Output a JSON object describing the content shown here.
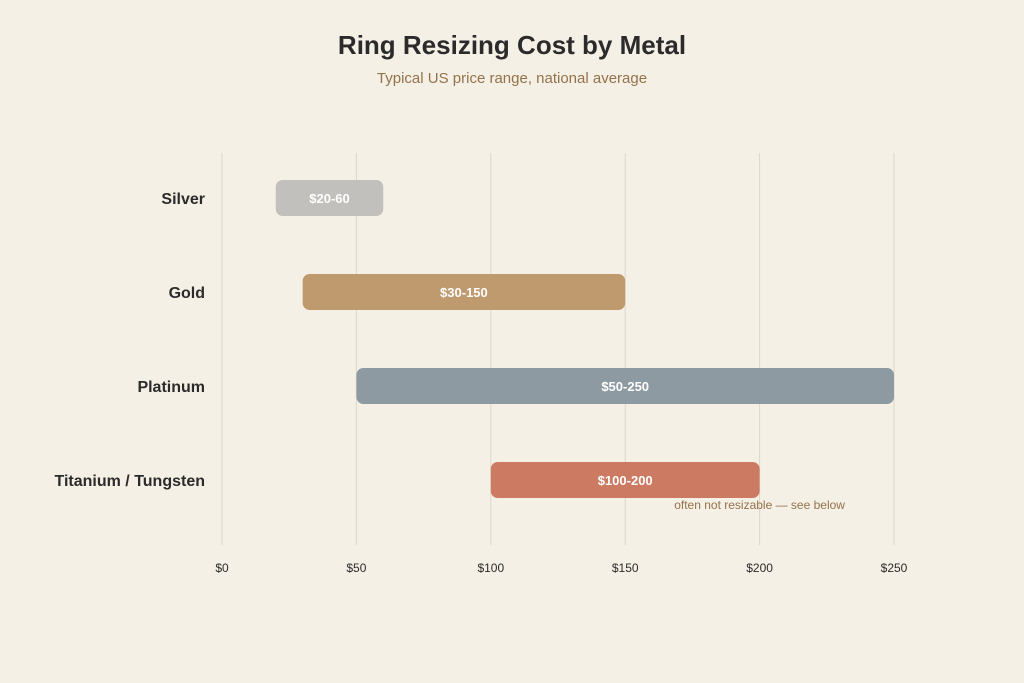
{
  "chart_data": {
    "type": "bar",
    "orientation": "horizontal",
    "title": "Ring Resizing Cost by Metal",
    "subtitle": "Typical US price range, national average",
    "xlabel": "",
    "ylabel": "",
    "xlim": [
      0,
      250
    ],
    "x_ticks": [
      0,
      50,
      100,
      150,
      200,
      250
    ],
    "x_tick_labels": [
      "$0",
      "$50",
      "$100",
      "$150",
      "$200",
      "$250"
    ],
    "grid": true,
    "categories": [
      "Silver",
      "Gold",
      "Platinum",
      "Titanium / Tungsten"
    ],
    "ranges": [
      {
        "category": "Silver",
        "low": 20,
        "high": 60,
        "label": "$20-60",
        "color": "#c2c0bc"
      },
      {
        "category": "Gold",
        "low": 30,
        "high": 150,
        "label": "$30-150",
        "color": "#bf9a6f"
      },
      {
        "category": "Platinum",
        "low": 50,
        "high": 250,
        "label": "$50-250",
        "color": "#8d9aa2"
      },
      {
        "category": "Titanium / Tungsten",
        "low": 100,
        "high": 200,
        "label": "$100-200",
        "color": "#cc7a62"
      }
    ],
    "annotations": [
      {
        "category": "Titanium / Tungsten",
        "text": "often not resizable — see below",
        "at": 200
      }
    ]
  }
}
